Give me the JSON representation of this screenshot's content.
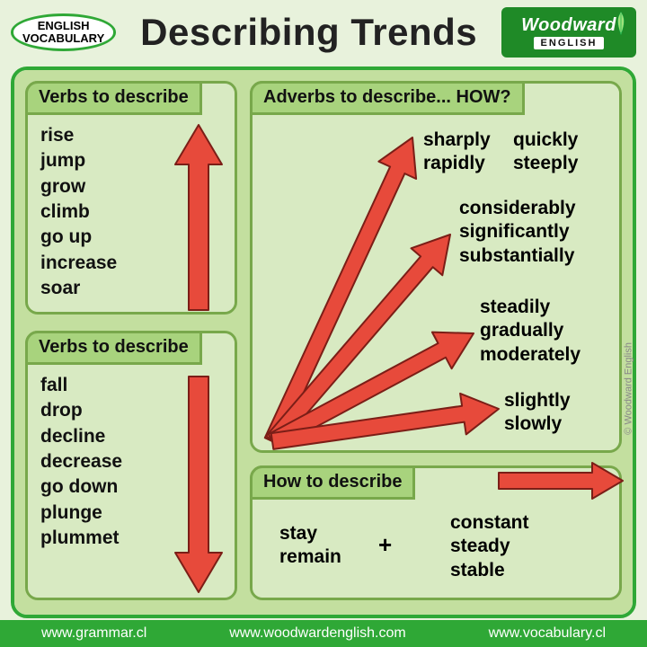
{
  "colors": {
    "page_bg": "#e8f2dc",
    "accent_green": "#2fa836",
    "panel_border": "#78a84b",
    "panel_head_bg": "#a8d37d",
    "panel_fill": "#d8eac2",
    "canvas_fill": "#c3df9f",
    "title_color": "#222222",
    "arrow_fill": "#e74a3b",
    "arrow_stroke": "#7b1e17",
    "brand_bg": "#1f8a27",
    "footer_bg": "#2fa836"
  },
  "badge": {
    "line1": "ENGLISH",
    "line2": "VOCABULARY"
  },
  "title": "Describing Trends",
  "brand": {
    "top": "Woodward",
    "bottom": "ENGLISH"
  },
  "panels": {
    "verbs_up": {
      "heading": "Verbs to describe",
      "words": [
        "rise",
        "jump",
        "grow",
        "climb",
        "go up",
        "increase",
        "soar"
      ]
    },
    "verbs_down": {
      "heading": "Verbs to describe",
      "words": [
        "fall",
        "drop",
        "decline",
        "decrease",
        "go down",
        "plunge",
        "plummet"
      ]
    },
    "adverbs": {
      "heading": "Adverbs to describe... HOW?",
      "group1": [
        "sharply",
        "rapidly"
      ],
      "group1b": [
        "quickly",
        "steeply"
      ],
      "group2": [
        "considerably",
        "significantly",
        "substantially"
      ],
      "group3": [
        "steadily",
        "gradually",
        "moderately"
      ],
      "group4": [
        "slightly",
        "slowly"
      ]
    },
    "howto": {
      "heading": "How to describe",
      "left": [
        "stay",
        "remain"
      ],
      "plus": "+",
      "right": [
        "constant",
        "steady",
        "stable"
      ]
    }
  },
  "footer": {
    "left": "www.grammar.cl",
    "center": "www.woodwardenglish.com",
    "right": "www.vocabulary.cl"
  },
  "copyright": "© Woodward English"
}
